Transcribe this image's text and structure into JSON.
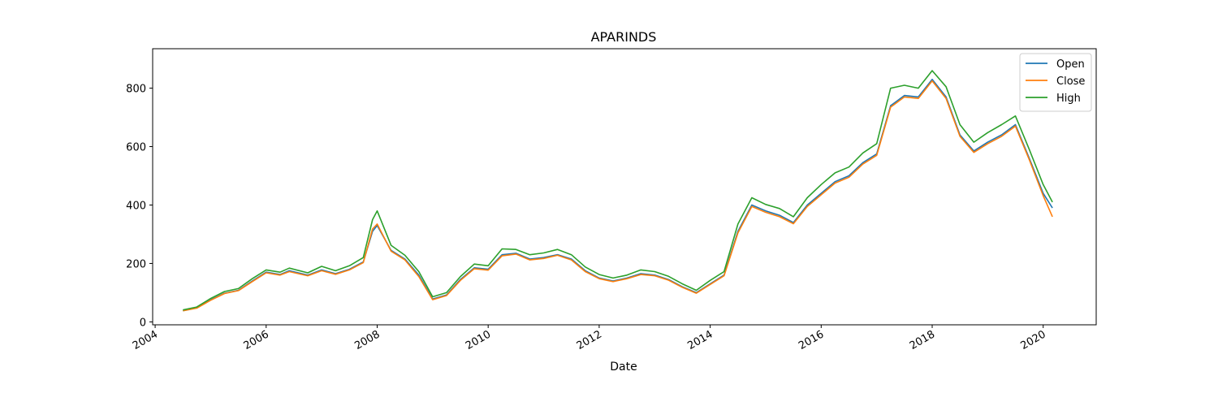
{
  "chart_data": {
    "type": "line",
    "title": "APARINDS",
    "xlabel": "Date",
    "ylabel": "",
    "xlim": [
      "2003-12-15",
      "2020-12-15"
    ],
    "ylim": [
      -10,
      935
    ],
    "x_ticks": [
      "2004",
      "2006",
      "2008",
      "2010",
      "2012",
      "2014",
      "2016",
      "2018",
      "2020"
    ],
    "y_ticks": [
      0,
      200,
      400,
      600,
      800
    ],
    "grid": false,
    "legend": "top-right",
    "x": [
      "2004-07",
      "2004-10",
      "2005-01",
      "2005-04",
      "2005-07",
      "2005-10",
      "2006-01",
      "2006-04",
      "2006-06",
      "2006-10",
      "2007-01",
      "2007-04",
      "2007-07",
      "2007-10",
      "2007-12",
      "2008-01",
      "2008-04",
      "2008-07",
      "2008-10",
      "2009-01",
      "2009-04",
      "2009-07",
      "2009-10",
      "2010-01",
      "2010-04",
      "2010-07",
      "2010-10",
      "2011-01",
      "2011-04",
      "2011-07",
      "2011-10",
      "2012-01",
      "2012-04",
      "2012-07",
      "2012-10",
      "2013-01",
      "2013-04",
      "2013-07",
      "2013-10",
      "2014-01",
      "2014-04",
      "2014-07",
      "2014-10",
      "2015-01",
      "2015-04",
      "2015-07",
      "2015-10",
      "2016-01",
      "2016-04",
      "2016-07",
      "2016-10",
      "2017-01",
      "2017-04",
      "2017-07",
      "2017-10",
      "2018-01",
      "2018-04",
      "2018-07",
      "2018-10",
      "2019-01",
      "2019-04",
      "2019-07",
      "2019-10",
      "2020-01",
      "2020-03"
    ],
    "series": [
      {
        "name": "Open",
        "color": "#1f77b4",
        "values": [
          38,
          48,
          75,
          98,
          108,
          140,
          170,
          162,
          175,
          160,
          178,
          165,
          180,
          205,
          310,
          330,
          245,
          215,
          160,
          78,
          92,
          145,
          185,
          180,
          230,
          235,
          215,
          220,
          230,
          215,
          175,
          150,
          140,
          150,
          165,
          160,
          145,
          120,
          100,
          130,
          160,
          310,
          400,
          380,
          365,
          340,
          400,
          440,
          480,
          500,
          545,
          575,
          740,
          775,
          770,
          830,
          770,
          640,
          585,
          615,
          640,
          675,
          560,
          440,
          390
        ]
      },
      {
        "name": "Close",
        "color": "#ff7f0e",
        "values": [
          38,
          47,
          74,
          97,
          107,
          138,
          168,
          160,
          172,
          158,
          175,
          163,
          178,
          203,
          318,
          335,
          242,
          212,
          155,
          76,
          90,
          142,
          182,
          177,
          226,
          232,
          212,
          217,
          228,
          212,
          172,
          148,
          138,
          148,
          162,
          158,
          143,
          118,
          98,
          128,
          158,
          305,
          395,
          375,
          360,
          336,
          395,
          435,
          475,
          495,
          540,
          570,
          735,
          770,
          765,
          825,
          765,
          635,
          580,
          610,
          635,
          670,
          555,
          432,
          360
        ]
      },
      {
        "name": "High",
        "color": "#2ca02c",
        "values": [
          41,
          51,
          80,
          104,
          114,
          148,
          178,
          170,
          184,
          168,
          190,
          175,
          192,
          220,
          350,
          380,
          262,
          228,
          172,
          86,
          100,
          155,
          198,
          192,
          250,
          248,
          230,
          236,
          248,
          230,
          188,
          162,
          150,
          160,
          178,
          172,
          156,
          130,
          108,
          142,
          172,
          335,
          425,
          402,
          388,
          360,
          425,
          470,
          510,
          530,
          578,
          610,
          800,
          810,
          800,
          860,
          805,
          675,
          615,
          648,
          675,
          705,
          590,
          470,
          410
        ]
      }
    ]
  }
}
